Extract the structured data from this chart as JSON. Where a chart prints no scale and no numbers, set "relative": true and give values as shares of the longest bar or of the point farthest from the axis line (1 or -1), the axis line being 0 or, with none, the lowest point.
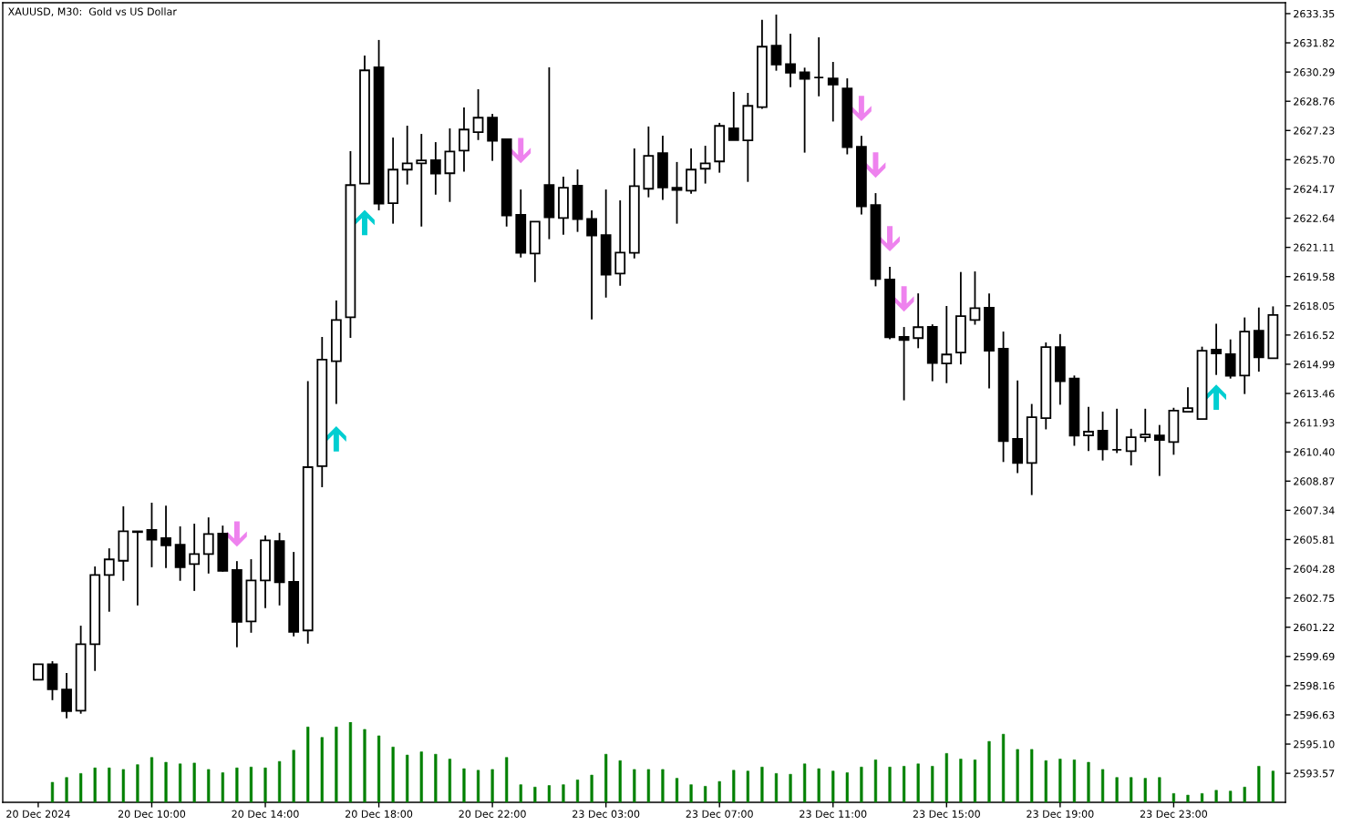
{
  "chart_data": [
    {
      "type": "candlestick",
      "title": "XAUUSD, M30:  Gold vs US Dollar",
      "categories": [
        "20 Dec 2024",
        null,
        null,
        null,
        null,
        null,
        null,
        null,
        "20 Dec 10:00",
        null,
        null,
        null,
        null,
        null,
        null,
        null,
        "20 Dec 14:00",
        null,
        null,
        null,
        null,
        null,
        null,
        null,
        "20 Dec 18:00",
        null,
        null,
        null,
        null,
        null,
        null,
        null,
        "20 Dec 22:00",
        null,
        null,
        null,
        null,
        null,
        null,
        null,
        "23 Dec 03:00",
        null,
        null,
        null,
        null,
        null,
        null,
        null,
        "23 Dec 07:00",
        null,
        null,
        null,
        null,
        null,
        null,
        null,
        "23 Dec 11:00",
        null,
        null,
        null,
        null,
        null,
        null,
        null,
        "23 Dec 15:00",
        null,
        null,
        null,
        null,
        null,
        null,
        null,
        "23 Dec 19:00",
        null,
        null,
        null,
        null,
        null,
        null,
        null,
        "23 Dec 23:00",
        null,
        null,
        null,
        null,
        null,
        null,
        null
      ],
      "ohlc": [
        [
          2598.47,
          2599.28,
          2598.47,
          2599.28
        ],
        [
          2599.28,
          2599.44,
          2597.4,
          2597.97
        ],
        [
          2597.96,
          2598.82,
          2596.45,
          2596.83
        ],
        [
          2596.85,
          2601.3,
          2596.69,
          2600.33
        ],
        [
          2600.33,
          2604.4,
          2598.93,
          2603.95
        ],
        [
          2603.95,
          2605.35,
          2602.03,
          2604.77
        ],
        [
          2604.7,
          2607.55,
          2603.65,
          2606.24
        ],
        [
          2606.24,
          2606.24,
          2602.36,
          2606.2
        ],
        [
          2606.31,
          2607.74,
          2604.36,
          2605.8
        ],
        [
          2605.88,
          2607.59,
          2604.32,
          2605.5
        ],
        [
          2605.54,
          2606.5,
          2603.65,
          2604.36
        ],
        [
          2604.53,
          2606.64,
          2603.12,
          2605.05
        ],
        [
          2605.05,
          2606.97,
          2604.03,
          2606.1
        ],
        [
          2606.12,
          2606.54,
          2604.13,
          2604.17
        ],
        [
          2604.21,
          2604.68,
          2600.17,
          2601.5
        ],
        [
          2601.52,
          2604.78,
          2600.93,
          2603.67
        ],
        [
          2603.67,
          2606.02,
          2602.22,
          2605.77
        ],
        [
          2605.73,
          2606.16,
          2602.36,
          2603.57
        ],
        [
          2603.59,
          2605.16,
          2600.74,
          2600.98
        ],
        [
          2601.05,
          2614.11,
          2600.36,
          2609.6
        ],
        [
          2609.65,
          2616.42,
          2608.55,
          2615.23
        ],
        [
          2615.15,
          2618.33,
          2612.91,
          2617.31
        ],
        [
          2617.45,
          2626.15,
          2616.37,
          2624.37
        ],
        [
          2624.45,
          2631.16,
          2624.45,
          2630.38
        ],
        [
          2630.54,
          2631.97,
          2623.05,
          2623.4
        ],
        [
          2623.42,
          2626.86,
          2622.35,
          2625.18
        ],
        [
          2625.18,
          2627.48,
          2624.4,
          2625.51
        ],
        [
          2625.51,
          2627.05,
          2622.2,
          2625.66
        ],
        [
          2625.67,
          2626.62,
          2623.87,
          2624.97
        ],
        [
          2624.99,
          2627.34,
          2623.49,
          2626.13
        ],
        [
          2626.18,
          2628.44,
          2625.07,
          2627.28
        ],
        [
          2627.14,
          2629.39,
          2626.73,
          2627.9
        ],
        [
          2627.9,
          2628.1,
          2625.64,
          2626.69
        ],
        [
          2626.77,
          2626.77,
          2622.2,
          2622.78
        ],
        [
          2622.81,
          2624.14,
          2620.58,
          2620.82
        ],
        [
          2620.79,
          2622.46,
          2619.29,
          2622.46
        ],
        [
          2624.38,
          2630.54,
          2621.54,
          2622.68
        ],
        [
          2622.65,
          2624.81,
          2621.77,
          2624.23
        ],
        [
          2624.34,
          2625.19,
          2621.92,
          2622.59
        ],
        [
          2622.6,
          2623.05,
          2617.34,
          2621.73
        ],
        [
          2621.75,
          2624.14,
          2618.48,
          2619.68
        ],
        [
          2619.74,
          2623.57,
          2619.1,
          2620.84
        ],
        [
          2620.82,
          2626.29,
          2620.53,
          2624.32
        ],
        [
          2624.18,
          2627.44,
          2623.73,
          2625.9
        ],
        [
          2626.04,
          2626.96,
          2623.59,
          2624.25
        ],
        [
          2624.23,
          2625.58,
          2622.35,
          2624.11
        ],
        [
          2624.08,
          2626.29,
          2623.92,
          2625.18
        ],
        [
          2625.23,
          2626.43,
          2624.45,
          2625.51
        ],
        [
          2625.61,
          2627.63,
          2625.02,
          2627.47
        ],
        [
          2627.34,
          2629.25,
          2626.73,
          2626.73
        ],
        [
          2626.71,
          2629.2,
          2624.54,
          2628.52
        ],
        [
          2628.45,
          2633.02,
          2628.36,
          2631.62
        ],
        [
          2631.67,
          2633.3,
          2630.36,
          2630.69
        ],
        [
          2630.71,
          2632.3,
          2629.5,
          2630.26
        ],
        [
          2630.28,
          2630.52,
          2626.07,
          2629.93
        ],
        [
          2630.0,
          2632.11,
          2629.02,
          2630.0
        ],
        [
          2629.95,
          2630.82,
          2627.7,
          2629.64
        ],
        [
          2629.43,
          2629.96,
          2625.98,
          2626.36
        ],
        [
          2626.38,
          2626.95,
          2622.83,
          2623.26
        ],
        [
          2623.33,
          2623.95,
          2619.07,
          2619.45
        ],
        [
          2619.43,
          2620.09,
          2616.3,
          2616.4
        ],
        [
          2616.42,
          2616.94,
          2613.1,
          2616.26
        ],
        [
          2616.36,
          2618.7,
          2615.83,
          2616.93
        ],
        [
          2616.95,
          2617.08,
          2614.1,
          2615.06
        ],
        [
          2615.03,
          2618.04,
          2614.0,
          2615.5
        ],
        [
          2615.6,
          2619.82,
          2614.98,
          2617.51
        ],
        [
          2617.31,
          2619.85,
          2617.06,
          2617.93
        ],
        [
          2617.95,
          2618.7,
          2613.73,
          2615.7
        ],
        [
          2615.8,
          2616.7,
          2609.87,
          2610.97
        ],
        [
          2611.08,
          2614.14,
          2609.29,
          2609.82
        ],
        [
          2609.82,
          2612.91,
          2608.14,
          2612.22
        ],
        [
          2612.17,
          2616.13,
          2611.58,
          2615.89
        ],
        [
          2615.89,
          2616.57,
          2612.87,
          2614.1
        ],
        [
          2614.24,
          2614.4,
          2610.72,
          2611.25
        ],
        [
          2611.26,
          2612.76,
          2610.44,
          2611.46
        ],
        [
          2611.51,
          2612.51,
          2609.95,
          2610.54
        ],
        [
          2610.51,
          2612.66,
          2610.34,
          2610.51
        ],
        [
          2610.44,
          2611.61,
          2609.69,
          2611.17
        ],
        [
          2611.17,
          2612.66,
          2610.92,
          2611.31
        ],
        [
          2611.26,
          2611.81,
          2609.14,
          2611.02
        ],
        [
          2610.92,
          2612.71,
          2610.25,
          2612.56
        ],
        [
          2612.5,
          2613.78,
          2612.5,
          2612.69
        ],
        [
          2612.12,
          2615.91,
          2612.12,
          2615.7
        ],
        [
          2615.75,
          2617.11,
          2614.43,
          2615.55
        ],
        [
          2615.52,
          2616.29,
          2614.24,
          2614.39
        ],
        [
          2614.4,
          2617.44,
          2613.43,
          2616.7
        ],
        [
          2616.75,
          2617.96,
          2614.6,
          2615.35
        ],
        [
          2615.3,
          2618.02,
          2615.3,
          2617.57
        ]
      ],
      "colors": [
        "#ffffff",
        "#000000",
        "#000000",
        "#ffffff",
        "#ffffff",
        "#ffffff",
        "#ffffff",
        "#000000",
        "#000000",
        "#000000",
        "#000000",
        "#ffffff",
        "#ffffff",
        "#000000",
        "#000000",
        "#ffffff",
        "#ffffff",
        "#000000",
        "#000000",
        "#ffffff",
        "#ffffff",
        "#ffffff",
        "#ffffff",
        "#ffffff",
        "#000000",
        "#ffffff",
        "#ffffff",
        "#ffffff",
        "#000000",
        "#ffffff",
        "#ffffff",
        "#ffffff",
        "#000000",
        "#000000",
        "#000000",
        "#ffffff",
        "#000000",
        "#ffffff",
        "#000000",
        "#000000",
        "#000000",
        "#ffffff",
        "#ffffff",
        "#ffffff",
        "#000000",
        "#000000",
        "#ffffff",
        "#ffffff",
        "#ffffff",
        "#000000",
        "#ffffff",
        "#ffffff",
        "#000000",
        "#000000",
        "#000000",
        "#000000",
        "#000000",
        "#000000",
        "#000000",
        "#000000",
        "#000000",
        "#000000",
        "#ffffff",
        "#000000",
        "#ffffff",
        "#ffffff",
        "#ffffff",
        "#000000",
        "#000000",
        "#000000",
        "#ffffff",
        "#ffffff",
        "#000000",
        "#000000",
        "#ffffff",
        "#000000",
        "#000000",
        "#ffffff",
        "#ffffff",
        "#000000",
        "#ffffff",
        "#ffffff",
        "#ffffff",
        "#000000",
        "#000000",
        "#ffffff",
        "#000000",
        "#ffffff"
      ],
      "ylim": [
        2592.05,
        2633.92
      ],
      "yticks": [
        2593.57,
        {
          "value": 2595.1,
          "label": "2595.10"
        },
        2596.63,
        2598.16,
        2599.69,
        2601.22,
        2602.75,
        2604.28,
        2605.81,
        2607.34,
        2608.87,
        {
          "value": 2610.4,
          "label": "2610.40"
        },
        2611.93,
        2613.46,
        2614.99,
        2616.52,
        2618.05,
        2619.58,
        2621.11,
        2622.64,
        2624.17,
        {
          "value": 2625.7,
          "label": "2625.70"
        },
        2627.23,
        2628.76,
        2630.29,
        2631.82,
        2633.35
      ],
      "series": [
        {
          "type": "scatter",
          "color": "#ee82ee",
          "values": [
            null,
            null,
            null,
            null,
            null,
            null,
            null,
            null,
            null,
            null,
            null,
            null,
            null,
            null,
            2606.1,
            null,
            null,
            null,
            null,
            null,
            null,
            null,
            null,
            null,
            null,
            null,
            null,
            null,
            null,
            null,
            null,
            null,
            null,
            null,
            2626.18,
            null,
            null,
            null,
            null,
            null,
            null,
            null,
            null,
            null,
            null,
            null,
            null,
            null,
            null,
            null,
            null,
            null,
            null,
            null,
            null,
            null,
            null,
            null,
            2628.38,
            2625.42,
            2621.56,
            2618.41,
            null,
            null,
            null,
            null,
            null,
            null,
            null,
            null,
            null,
            null,
            null,
            null,
            null,
            null,
            null,
            null,
            null,
            null,
            null,
            null,
            null,
            null,
            null,
            null,
            null,
            null
          ]
        },
        {
          "type": "scatter",
          "color": "#00ced1",
          "values": [
            null,
            null,
            null,
            null,
            null,
            null,
            null,
            null,
            null,
            null,
            null,
            null,
            null,
            null,
            null,
            null,
            null,
            null,
            null,
            null,
            null,
            2611.08,
            null,
            2622.41,
            null,
            null,
            null,
            null,
            null,
            null,
            null,
            null,
            null,
            null,
            null,
            null,
            null,
            null,
            null,
            null,
            null,
            null,
            null,
            null,
            null,
            null,
            null,
            null,
            null,
            null,
            null,
            null,
            null,
            null,
            null,
            null,
            null,
            null,
            null,
            null,
            null,
            null,
            null,
            null,
            null,
            null,
            null,
            null,
            null,
            null,
            null,
            null,
            null,
            null,
            null,
            null,
            null,
            null,
            null,
            null,
            null,
            null,
            null,
            2613.26,
            null,
            null,
            null,
            null
          ]
        }
      ]
    },
    {
      "type": "bar",
      "relative": true,
      "color": "#008000",
      "categories": [
        null,
        null,
        null,
        null,
        null,
        null,
        null,
        null,
        null,
        null,
        null,
        null,
        null,
        null,
        null,
        null,
        null,
        null,
        null,
        null,
        null,
        null,
        null,
        null,
        null,
        null,
        null,
        null,
        null,
        null,
        null,
        null,
        null,
        null,
        null,
        null,
        null,
        null,
        null,
        null,
        null,
        null,
        null,
        null,
        null,
        null,
        null,
        null,
        null,
        null,
        null,
        null,
        null,
        null,
        null,
        null,
        null,
        null,
        null,
        null,
        null,
        null,
        null,
        null,
        null,
        null,
        null,
        null,
        null,
        null,
        null,
        null,
        null,
        null,
        null,
        null,
        null,
        null,
        null,
        null,
        null,
        null,
        null,
        null,
        null,
        null,
        null,
        null
      ],
      "values": [
        null,
        0.25,
        0.31,
        0.36,
        0.43,
        0.43,
        0.41,
        0.47,
        0.56,
        0.5,
        0.48,
        0.49,
        0.41,
        0.37,
        0.43,
        0.44,
        0.43,
        0.51,
        0.65,
        0.94,
        0.81,
        0.94,
        1,
        0.91,
        0.83,
        0.69,
        0.59,
        0.63,
        0.6,
        0.54,
        0.42,
        0.4,
        0.41,
        0.56,
        0.22,
        0.19,
        0.21,
        0.22,
        0.28,
        0.34,
        0.6,
        0.52,
        0.41,
        0.41,
        0.41,
        0.3,
        0.22,
        0.2,
        0.26,
        0.4,
        0.39,
        0.44,
        0.36,
        0.35,
        0.48,
        0.42,
        0.39,
        0.37,
        0.44,
        0.53,
        0.44,
        0.45,
        0.48,
        0.45,
        0.61,
        0.54,
        0.53,
        0.76,
        0.85,
        0.66,
        0.66,
        0.52,
        0.54,
        0.53,
        0.5,
        0.41,
        0.31,
        0.31,
        0.3,
        0.31,
        0.11,
        0.09,
        0.11,
        0.15,
        0.14,
        0.19,
        0.45,
        0.39
      ]
    }
  ]
}
